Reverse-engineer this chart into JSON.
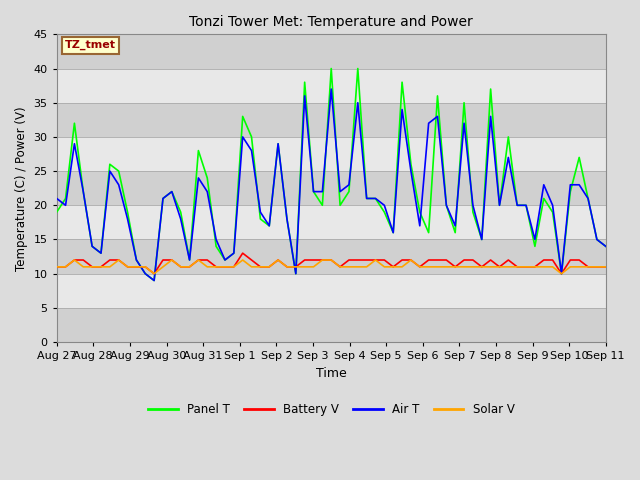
{
  "title": "Tonzi Tower Met: Temperature and Power",
  "xlabel": "Time",
  "ylabel": "Temperature (C) / Power (V)",
  "annotation": "TZ_tmet",
  "ylim": [
    0,
    45
  ],
  "yticks": [
    0,
    5,
    10,
    15,
    20,
    25,
    30,
    35,
    40,
    45
  ],
  "x_labels": [
    "Aug 27",
    "Aug 28",
    "Aug 29",
    "Aug 30",
    "Aug 31",
    "Sep 1",
    "Sep 2",
    "Sep 3",
    "Sep 4",
    "Sep 5",
    "Sep 6",
    "Sep 7",
    "Sep 8",
    "Sep 9",
    "Sep 10",
    "Sep 11"
  ],
  "colors": {
    "panel_t": "#00FF00",
    "battery_v": "#FF0000",
    "air_t": "#0000FF",
    "solar_v": "#FFA500"
  },
  "legend_labels": [
    "Panel T",
    "Battery V",
    "Air T",
    "Solar V"
  ],
  "bg_color": "#DCDCDC",
  "plot_bg": "#DCDCDC",
  "band_light": "#E8E8E8",
  "band_dark": "#D0D0D0",
  "grid_color": "#AAAAAA",
  "panel_t": [
    19,
    21,
    32,
    22,
    14,
    13,
    26,
    25,
    19,
    12,
    10,
    9,
    21,
    22,
    19,
    12,
    28,
    24,
    14,
    12,
    13,
    33,
    30,
    18,
    17,
    29,
    18,
    10,
    38,
    22,
    20,
    40,
    20,
    22,
    40,
    21,
    21,
    19,
    16,
    38,
    26,
    19,
    16,
    36,
    20,
    16,
    35,
    19,
    15,
    37,
    20,
    30,
    20,
    20,
    14,
    21,
    19,
    10,
    22,
    27,
    21,
    15,
    14
  ],
  "air_t": [
    21,
    20,
    29,
    22,
    14,
    13,
    25,
    23,
    18,
    12,
    10,
    9,
    21,
    22,
    18,
    12,
    24,
    22,
    15,
    12,
    13,
    30,
    28,
    19,
    17,
    29,
    18,
    10,
    36,
    22,
    22,
    37,
    22,
    23,
    35,
    21,
    21,
    20,
    16,
    34,
    25,
    17,
    32,
    33,
    20,
    17,
    32,
    20,
    15,
    33,
    20,
    27,
    20,
    20,
    15,
    23,
    20,
    10,
    23,
    23,
    21,
    15,
    14
  ],
  "battery_v": [
    11,
    11,
    12,
    12,
    11,
    11,
    12,
    12,
    11,
    11,
    11,
    10,
    12,
    12,
    11,
    11,
    12,
    12,
    11,
    11,
    11,
    13,
    12,
    11,
    11,
    12,
    11,
    11,
    12,
    12,
    12,
    12,
    11,
    12,
    12,
    12,
    12,
    12,
    11,
    12,
    12,
    11,
    12,
    12,
    12,
    11,
    12,
    12,
    11,
    12,
    11,
    12,
    11,
    11,
    11,
    12,
    12,
    10,
    12,
    12,
    11,
    11,
    11
  ],
  "solar_v": [
    11,
    11,
    12,
    11,
    11,
    11,
    11,
    12,
    11,
    11,
    11,
    10,
    11,
    12,
    11,
    11,
    12,
    11,
    11,
    11,
    11,
    12,
    11,
    11,
    11,
    12,
    11,
    11,
    11,
    11,
    12,
    12,
    11,
    11,
    11,
    11,
    12,
    11,
    11,
    11,
    12,
    11,
    11,
    11,
    11,
    11,
    11,
    11,
    11,
    11,
    11,
    11,
    11,
    11,
    11,
    11,
    11,
    10,
    11,
    11,
    11,
    11,
    11
  ]
}
